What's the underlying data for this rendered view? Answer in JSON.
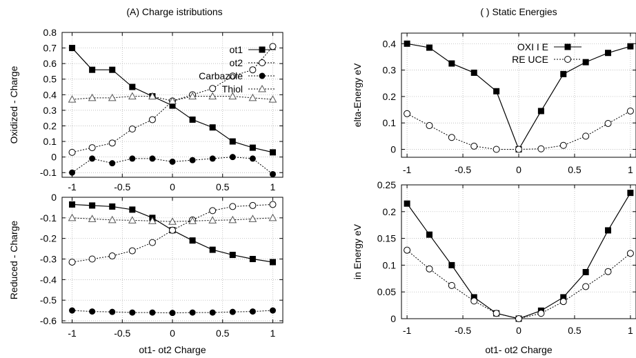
{
  "chart_data": [
    {
      "type": "line",
      "title": "(A) Charge  istributions",
      "ylabel": "Oxidized - Charge",
      "xlabel": "",
      "xlim": [
        -1.1,
        1.1
      ],
      "ylim": [
        -0.13,
        0.8
      ],
      "x_ticks": [
        -1,
        -0.5,
        0,
        0.5,
        1
      ],
      "x_tick_labels": [
        "-1",
        "-0.5",
        "0",
        "0.5",
        "1"
      ],
      "y_ticks": [
        -0.1,
        0,
        0.1,
        0.2,
        0.3,
        0.4,
        0.5,
        0.6,
        0.7,
        0.8
      ],
      "y_tick_labels": [
        "-0.1",
        "0",
        "0.1",
        "0.2",
        "0.3",
        "0.4",
        "0.5",
        "0.6",
        "0.7",
        "0.8"
      ],
      "grid": true,
      "legend_position": "top-right",
      "x": [
        -1,
        -0.8,
        -0.6,
        -0.4,
        -0.2,
        0,
        0.2,
        0.4,
        0.6,
        0.8,
        1
      ],
      "series": [
        {
          "name": "ot1",
          "marker": "square-filled",
          "dash": "solid",
          "values": [
            0.7,
            0.56,
            0.56,
            0.45,
            0.39,
            0.33,
            0.24,
            0.19,
            0.1,
            0.06,
            0.03
          ]
        },
        {
          "name": "ot2",
          "marker": "circle-open",
          "dash": "dotted",
          "values": [
            0.03,
            0.06,
            0.09,
            0.18,
            0.24,
            0.36,
            0.4,
            0.44,
            0.52,
            0.56,
            0.71
          ]
        },
        {
          "name": "Carbazole",
          "marker": "circle-filled",
          "dash": "dotted",
          "values": [
            -0.1,
            -0.01,
            -0.04,
            -0.01,
            -0.01,
            -0.03,
            -0.02,
            -0.01,
            0.0,
            -0.01,
            -0.11
          ]
        },
        {
          "name": "Thiol",
          "marker": "triangle-open",
          "dash": "dotted",
          "values": [
            0.37,
            0.38,
            0.38,
            0.39,
            0.39,
            0.36,
            0.39,
            0.39,
            0.39,
            0.38,
            0.37
          ]
        }
      ]
    },
    {
      "type": "line",
      "title": "",
      "ylabel": "Reduced - Charge",
      "xlabel": "ot1- ot2 Charge",
      "xlim": [
        -1.1,
        1.1
      ],
      "ylim": [
        -0.61,
        0
      ],
      "x_ticks": [
        -1,
        -0.5,
        0,
        0.5,
        1
      ],
      "x_tick_labels": [
        "-1",
        "-0.5",
        "0",
        "0.5",
        "1"
      ],
      "y_ticks": [
        -0.6,
        -0.5,
        -0.4,
        -0.3,
        -0.2,
        -0.1,
        0
      ],
      "y_tick_labels": [
        "-0.6",
        "-0.5",
        "-0.4",
        "-0.3",
        "-0.2",
        "-0.1",
        "0"
      ],
      "grid": true,
      "x": [
        -1,
        -0.8,
        -0.6,
        -0.4,
        -0.2,
        0,
        0.2,
        0.4,
        0.6,
        0.8,
        1
      ],
      "series": [
        {
          "name": "ot1",
          "marker": "square-filled",
          "dash": "solid",
          "values": [
            -0.035,
            -0.04,
            -0.045,
            -0.06,
            -0.1,
            -0.16,
            -0.21,
            -0.255,
            -0.28,
            -0.3,
            -0.315
          ]
        },
        {
          "name": "ot2",
          "marker": "circle-open",
          "dash": "dotted",
          "values": [
            -0.315,
            -0.3,
            -0.285,
            -0.26,
            -0.22,
            -0.16,
            -0.11,
            -0.065,
            -0.045,
            -0.04,
            -0.035
          ]
        },
        {
          "name": "Carbazole",
          "marker": "circle-filled",
          "dash": "dotted",
          "values": [
            -0.55,
            -0.555,
            -0.557,
            -0.56,
            -0.56,
            -0.562,
            -0.56,
            -0.56,
            -0.557,
            -0.555,
            -0.55
          ]
        },
        {
          "name": "Thiol",
          "marker": "triangle-open",
          "dash": "dotted",
          "values": [
            -0.1,
            -0.105,
            -0.11,
            -0.112,
            -0.115,
            -0.118,
            -0.115,
            -0.112,
            -0.11,
            -0.105,
            -0.1
          ]
        }
      ]
    },
    {
      "type": "line",
      "title": "( ) Static Energies",
      "ylabel": "elta-Energy  eV",
      "xlabel": "",
      "xlim": [
        -1.05,
        1.05
      ],
      "ylim": [
        -0.03,
        0.44
      ],
      "x_ticks": [
        -1,
        -0.5,
        0,
        0.5,
        1
      ],
      "x_tick_labels": [
        "-1",
        "-0.5",
        "0",
        "0.5",
        "1"
      ],
      "y_ticks": [
        0,
        0.1,
        0.2,
        0.3,
        0.4
      ],
      "y_tick_labels": [
        "0",
        "0.1",
        "0.2",
        "0.3",
        "0.4"
      ],
      "grid": true,
      "legend_position": "top-right",
      "x": [
        -1,
        -0.8,
        -0.6,
        -0.4,
        -0.2,
        0,
        0.2,
        0.4,
        0.6,
        0.8,
        1
      ],
      "series": [
        {
          "name": "OXI I E",
          "marker": "square-filled",
          "dash": "solid",
          "values": [
            0.4,
            0.385,
            0.325,
            0.29,
            0.22,
            0.0,
            0.145,
            0.285,
            0.33,
            0.365,
            0.39
          ]
        },
        {
          "name": "RE UCE",
          "marker": "circle-open",
          "dash": "dotted",
          "values": [
            0.135,
            0.09,
            0.045,
            0.012,
            0.0,
            0.0,
            0.002,
            0.015,
            0.05,
            0.098,
            0.145
          ]
        }
      ]
    },
    {
      "type": "line",
      "title": "",
      "ylabel": "in  Energy  eV",
      "xlabel": "ot1- ot2 Charge",
      "xlim": [
        -1.05,
        1.05
      ],
      "ylim": [
        0,
        0.25
      ],
      "x_ticks": [
        -1,
        -0.5,
        0,
        0.5,
        1
      ],
      "x_tick_labels": [
        "-1",
        "-0.5",
        "0",
        "0.5",
        "1"
      ],
      "y_ticks": [
        0,
        0.05,
        0.1,
        0.15,
        0.2,
        0.25
      ],
      "y_tick_labels": [
        "0",
        "0.05",
        "0.1",
        "0.15",
        "0.2",
        "0.25"
      ],
      "grid": true,
      "x": [
        -1,
        -0.8,
        -0.6,
        -0.4,
        -0.2,
        0,
        0.2,
        0.4,
        0.6,
        0.8,
        1
      ],
      "series": [
        {
          "name": "",
          "marker": "square-filled",
          "dash": "solid",
          "values": [
            0.215,
            0.157,
            0.1,
            0.04,
            0.01,
            0.0,
            0.015,
            0.04,
            0.087,
            0.165,
            0.235
          ]
        },
        {
          "name": "",
          "marker": "circle-open",
          "dash": "dotted",
          "values": [
            0.128,
            0.093,
            0.062,
            0.033,
            0.01,
            0.0,
            0.01,
            0.032,
            0.06,
            0.088,
            0.122
          ]
        }
      ]
    }
  ]
}
